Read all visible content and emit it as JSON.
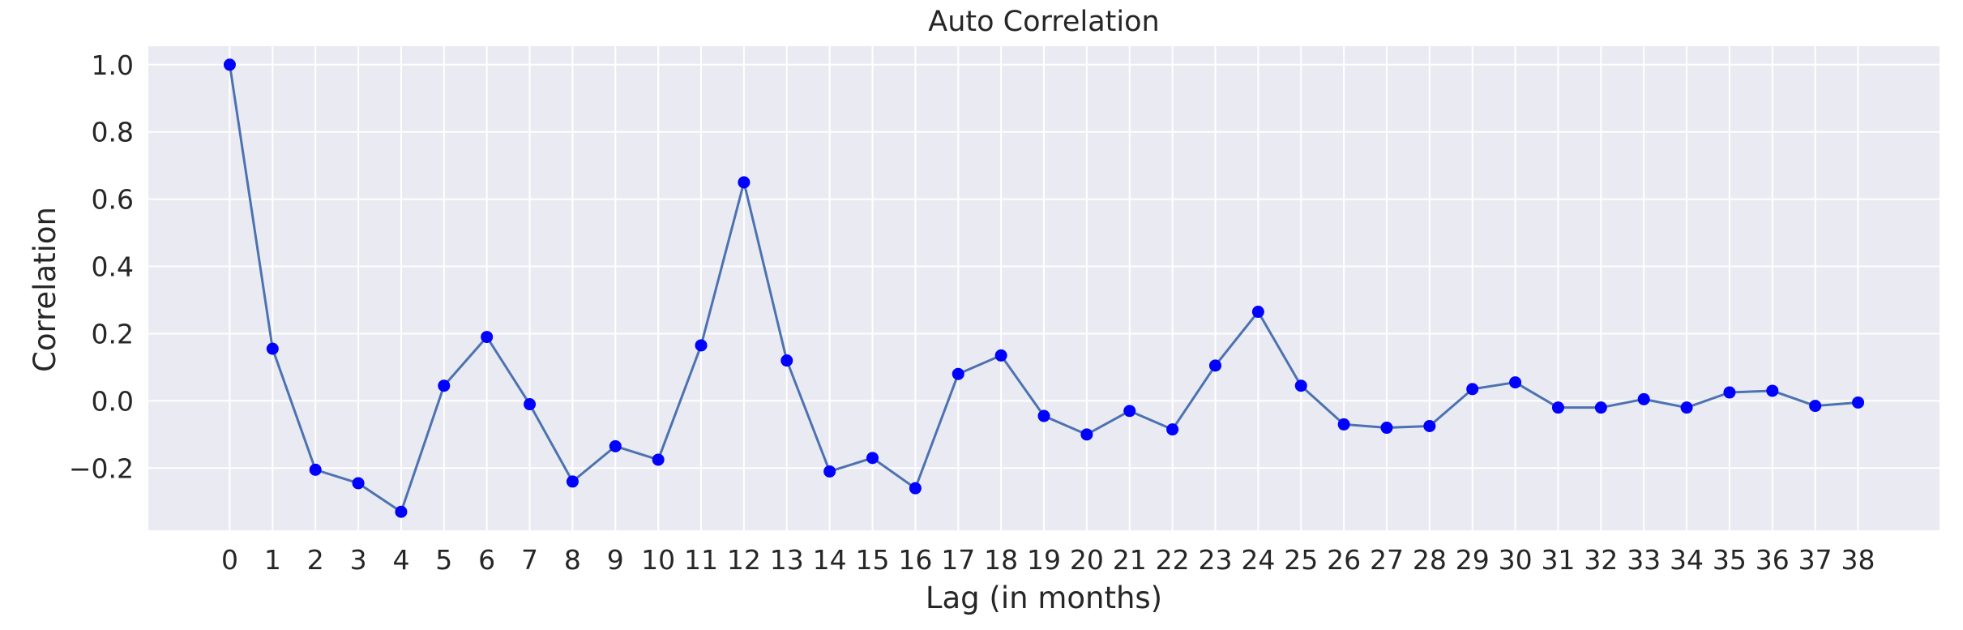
{
  "chart_data": {
    "type": "line",
    "title": "Auto Correlation",
    "xlabel": "Lag (in months)",
    "ylabel": "Correlation",
    "x": [
      0,
      1,
      2,
      3,
      4,
      5,
      6,
      7,
      8,
      9,
      10,
      11,
      12,
      13,
      14,
      15,
      16,
      17,
      18,
      19,
      20,
      21,
      22,
      23,
      24,
      25,
      26,
      27,
      28,
      29,
      30,
      31,
      32,
      33,
      34,
      35,
      36,
      37,
      38
    ],
    "series": [
      {
        "values": [
          1.0,
          0.155,
          -0.205,
          -0.245,
          -0.33,
          0.045,
          0.19,
          -0.01,
          -0.24,
          -0.135,
          -0.175,
          0.165,
          0.65,
          0.12,
          -0.21,
          -0.17,
          -0.26,
          0.08,
          0.135,
          -0.045,
          -0.1,
          -0.03,
          -0.085,
          0.105,
          0.265,
          0.045,
          -0.07,
          -0.08,
          -0.075,
          0.035,
          0.055,
          -0.02,
          -0.02,
          0.005,
          -0.02,
          0.025,
          0.03,
          -0.015,
          -0.005
        ],
        "line_color": "#4c72b0",
        "marker_color": "#0000ff"
      }
    ],
    "ylim": [
      -0.385,
      1.055
    ],
    "xlim": [
      -1.9,
      39.9
    ],
    "yticks": [
      -0.2,
      0.0,
      0.2,
      0.4,
      0.6,
      0.8,
      1.0
    ],
    "ytick_labels": [
      "−0.2",
      "0.0",
      "0.2",
      "0.4",
      "0.6",
      "0.8",
      "1.0"
    ],
    "xtick_labels": [
      "0",
      "1",
      "2",
      "3",
      "4",
      "5",
      "6",
      "7",
      "8",
      "9",
      "10",
      "11",
      "12",
      "13",
      "14",
      "15",
      "16",
      "17",
      "18",
      "19",
      "20",
      "21",
      "22",
      "23",
      "24",
      "25",
      "26",
      "27",
      "28",
      "29",
      "30",
      "31",
      "32",
      "33",
      "34",
      "35",
      "36",
      "37",
      "38"
    ],
    "grid": true,
    "background_color": "#eaeaf2",
    "grid_color": "#ffffff",
    "legend": "none"
  }
}
